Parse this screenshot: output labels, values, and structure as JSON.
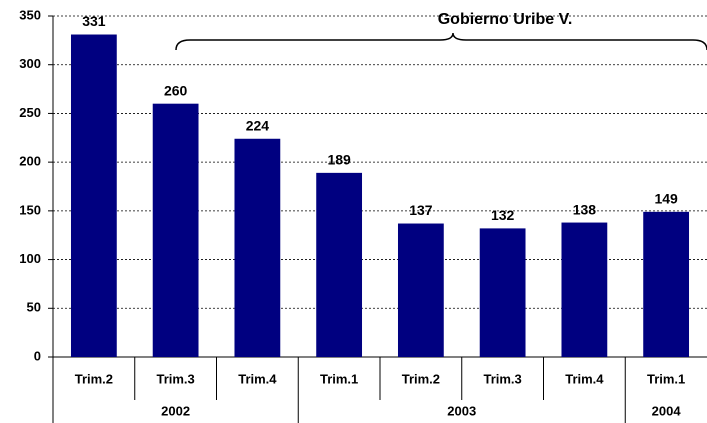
{
  "chart_data": {
    "type": "bar",
    "annotation": "Gobierno Uribe V.",
    "groups": [
      {
        "label": "2002",
        "categories": [
          "Trim.2",
          "Trim.3",
          "Trim.4"
        ],
        "values": [
          331,
          260,
          224
        ]
      },
      {
        "label": "2003",
        "categories": [
          "Trim.1",
          "Trim.2",
          "Trim.3",
          "Trim.4"
        ],
        "values": [
          189,
          137,
          132,
          138
        ]
      },
      {
        "label": "2004",
        "categories": [
          "Trim.1"
        ],
        "values": [
          149
        ]
      }
    ],
    "color": "#000080",
    "ylim": [
      0,
      350
    ],
    "yticks": [
      0,
      50,
      100,
      150,
      200,
      250,
      300,
      350
    ],
    "grid": true
  }
}
